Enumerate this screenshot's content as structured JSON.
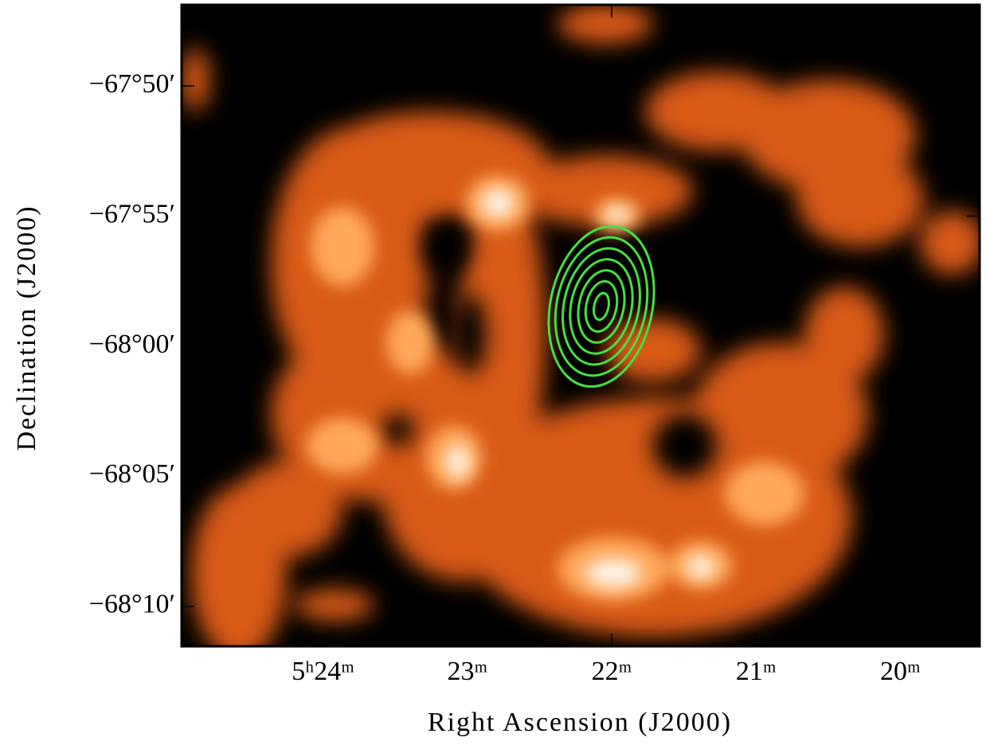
{
  "chart_data": {
    "type": "image",
    "xlabel": "Right Ascension (J2000)",
    "ylabel": "Declination (J2000)",
    "xlim": [
      324.98,
      319.45
    ],
    "ylim": [
      -68.1922,
      -67.7813
    ],
    "xticks": [
      {
        "value": 324,
        "label": "5ʰ24ᵐ"
      },
      {
        "value": 323,
        "label": "23ᵐ"
      },
      {
        "value": 322,
        "label": "22ᵐ"
      },
      {
        "value": 321,
        "label": "21ᵐ"
      },
      {
        "value": 320,
        "label": "20ᵐ"
      }
    ],
    "yticks": [
      {
        "value": -67.83333,
        "label": "−67°50′"
      },
      {
        "value": -67.91667,
        "label": "−67°55′"
      },
      {
        "value": -68,
        "label": "−68°00′"
      },
      {
        "value": -68.08333,
        "label": "−68°05′"
      },
      {
        "value": -68.16667,
        "label": "−68°10′"
      }
    ]
  }
}
